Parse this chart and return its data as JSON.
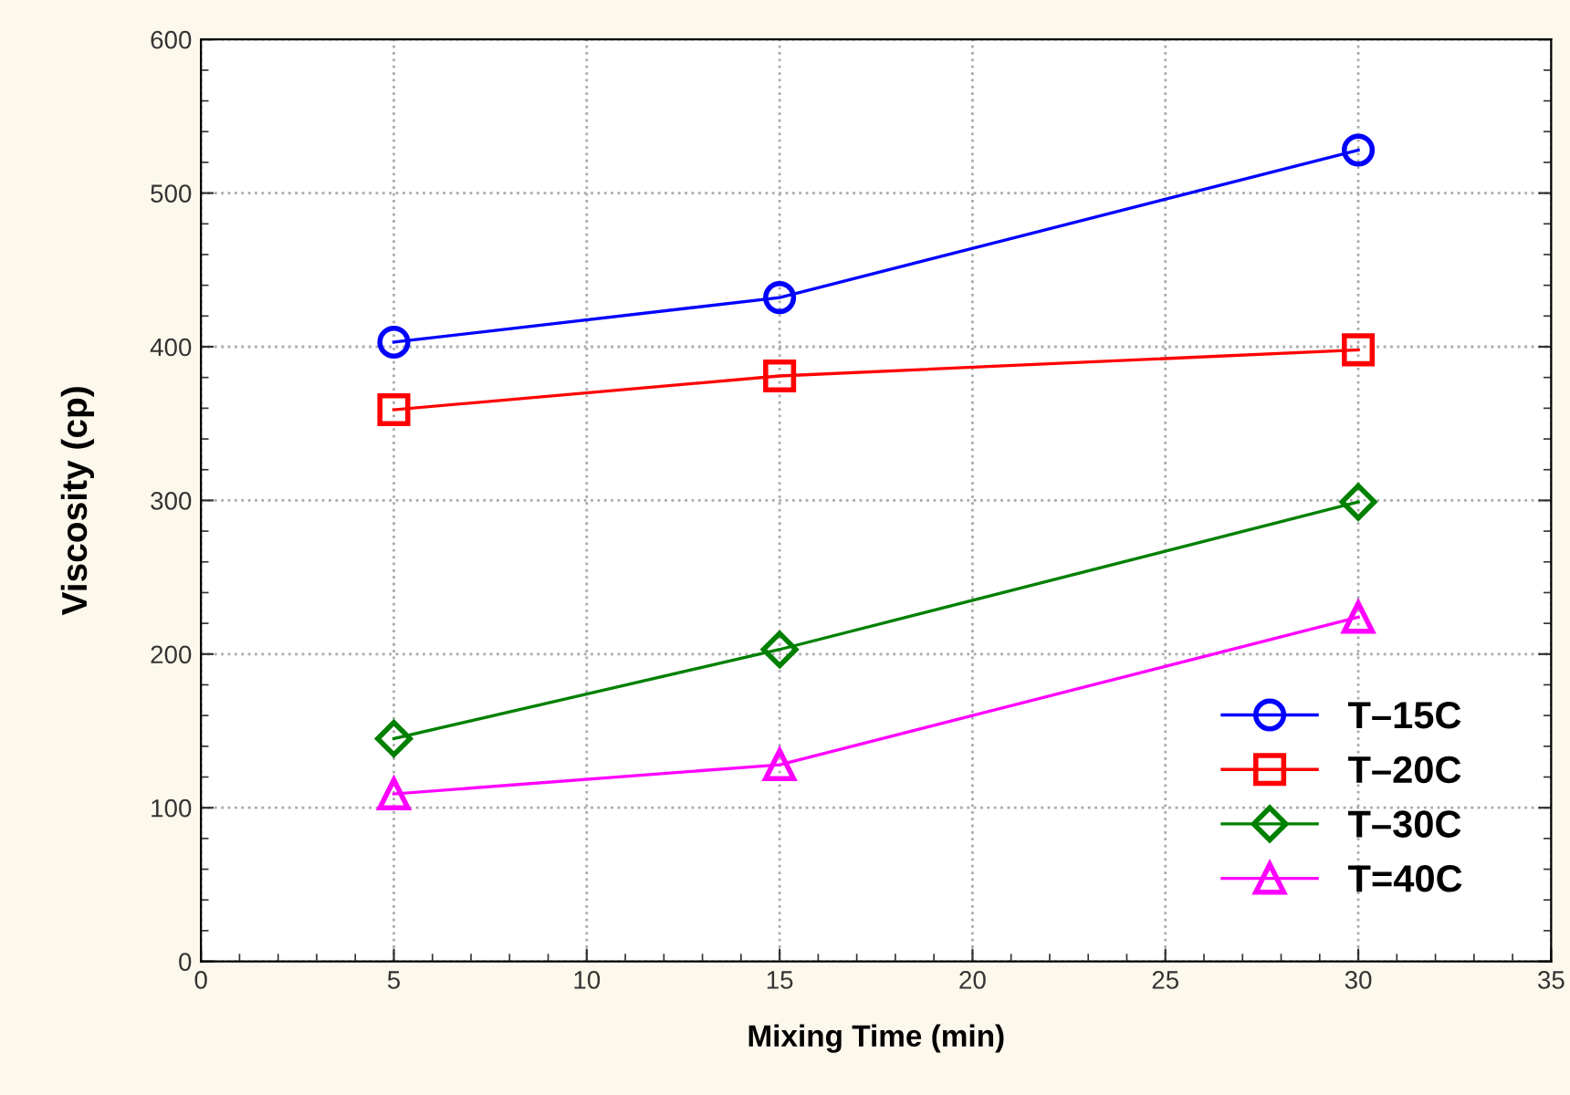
{
  "chart_data": {
    "type": "line",
    "xlabel": "Mixing Time (min)",
    "ylabel": "Viscosity (cp)",
    "x": [
      5,
      15,
      30
    ],
    "series": [
      {
        "name": "T–15C",
        "color": "#0000ff",
        "marker": "circle",
        "values": [
          403,
          432,
          528
        ]
      },
      {
        "name": "T–20C",
        "color": "#ff0000",
        "marker": "square",
        "values": [
          359,
          381,
          398
        ]
      },
      {
        "name": "T–30C",
        "color": "#008000",
        "marker": "diamond",
        "values": [
          145,
          203,
          299
        ]
      },
      {
        "name": "T=40C",
        "color": "#ff00ff",
        "marker": "triangle",
        "values": [
          109,
          128,
          224
        ]
      }
    ],
    "xlim": [
      0,
      35
    ],
    "xticks": [
      0,
      5,
      10,
      15,
      20,
      25,
      30,
      35
    ],
    "ylim": [
      0,
      600
    ],
    "yticks": [
      0,
      100,
      200,
      300,
      400,
      500,
      600
    ],
    "grid": true,
    "legend": "bottom right",
    "line_style": "solid"
  }
}
